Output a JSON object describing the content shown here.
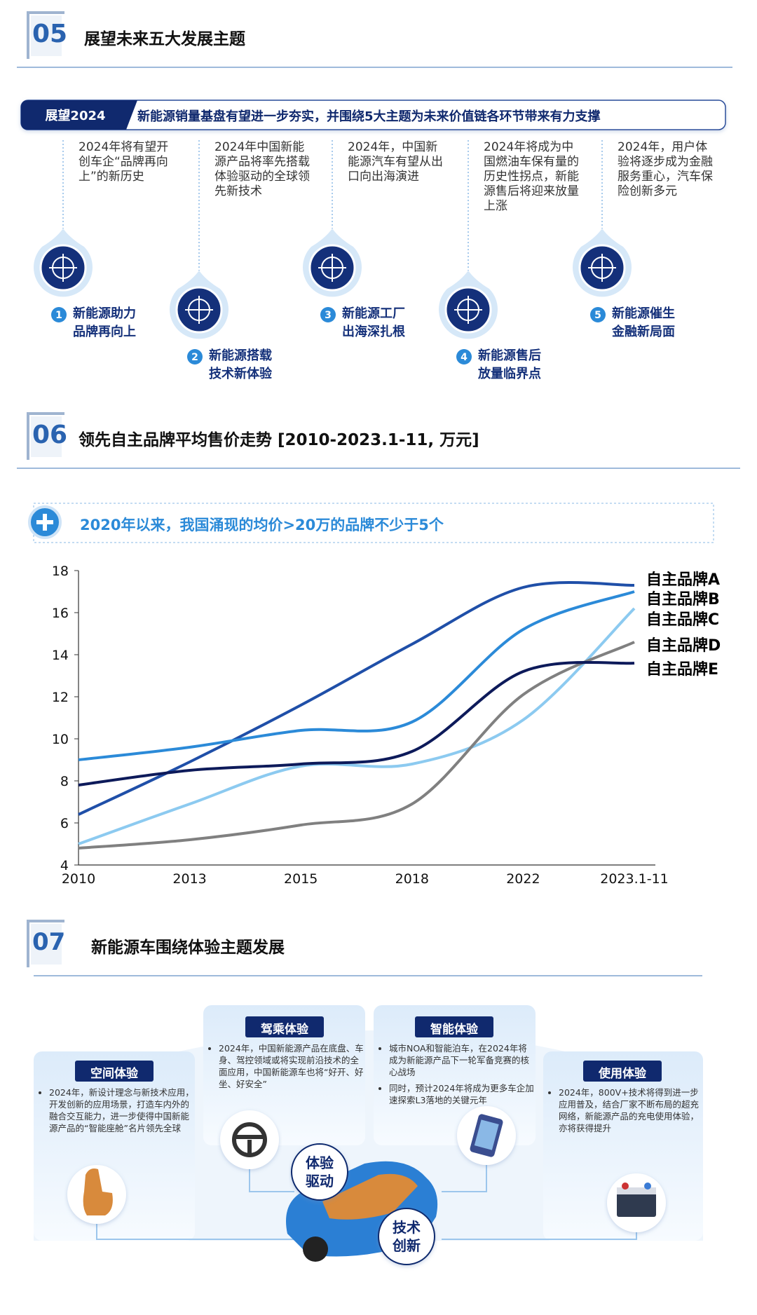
{
  "section05": {
    "number": "05",
    "title": "展望未来五大发展主题",
    "banner_tag": "展望2024",
    "banner_text": "新能源销量基盘有望进一步夯实，并围绕5大主题为未来价值链各环节带来有力支撑",
    "themes": [
      {
        "index": 1,
        "name": "新能源助力品牌再向上",
        "desc": "2024年将有望开创车企“品牌再向上”的新历史"
      },
      {
        "index": 2,
        "name": "新能源搭载技术新体验",
        "desc": "2024年中国新能源产品将率先搭载体验驱动的全球领先新技术"
      },
      {
        "index": 3,
        "name": "新能源工厂出海深扎根",
        "desc": "2024年，中国新能源汽车有望从出口向出海演进"
      },
      {
        "index": 4,
        "name": "新能源售后放量临界点",
        "desc": "2024年将成为中国燃油车保有量的历史性拐点，新能源售后将迎来放量上涨"
      },
      {
        "index": 5,
        "name": "新能源催生金融新局面",
        "desc": "2024年，用户体验将逐步成为金融服务重心，汽车保险创新多元"
      }
    ]
  },
  "chart_data": {
    "type": "line",
    "section_number": "06",
    "title": "领先自主品牌平均售价走势 [2010-2023.1-11, 万元]",
    "annotation": "2020年以来，我国涌现的均价>20万的品牌不少于5个",
    "categories": [
      "2010",
      "2013",
      "2015",
      "2018",
      "2022",
      "2023.1-11"
    ],
    "series": [
      {
        "name": "自主品牌A",
        "color": "#1f4fa8",
        "values": [
          6.4,
          8.9,
          11.6,
          14.5,
          17.2,
          17.3
        ]
      },
      {
        "name": "自主品牌B",
        "color": "#2b8ad8",
        "values": [
          9.0,
          9.6,
          10.4,
          10.8,
          15.2,
          17.0
        ]
      },
      {
        "name": "自主品牌C",
        "color": "#8ccaf0",
        "values": [
          5.0,
          6.9,
          8.7,
          8.8,
          10.9,
          16.2
        ]
      },
      {
        "name": "自主品牌D",
        "color": "#808080",
        "values": [
          4.8,
          5.2,
          5.9,
          6.9,
          12.1,
          14.6
        ]
      },
      {
        "name": "自主品牌E",
        "color": "#0d1a5a",
        "values": [
          7.8,
          8.5,
          8.8,
          9.4,
          13.2,
          13.6
        ]
      }
    ],
    "ylim": [
      4,
      18
    ],
    "yticks": [
      4,
      6,
      8,
      10,
      12,
      14,
      16,
      18
    ],
    "grid": false
  },
  "section07": {
    "number": "07",
    "title": "新能源车围绕体验主题发展",
    "center_labels": [
      "体验驱动",
      "技术创新"
    ],
    "cards": [
      {
        "title": "空间体验",
        "bullets": [
          "2024年，新设计理念与新技术应用，开发创新的应用场景，打造车内外的融合交互能力，进一步使得中国新能源产品的“智能座舱”名片领先全球"
        ]
      },
      {
        "title": "驾乘体验",
        "bullets": [
          "2024年，中国新能源产品在底盘、车身、驾控领域或将实现前沿技术的全面应用，中国新能源车也将“好开、好坐、好安全”"
        ]
      },
      {
        "title": "智能体验",
        "bullets": [
          "城市NOA和智能泊车，在2024年将成为新能源产品下一轮军备竞赛的核心战场",
          "同时，预计2024年将成为更多车企加速探索L3落地的关键元年"
        ]
      },
      {
        "title": "使用体验",
        "bullets": [
          "2024年，800V+技术将得到进一步应用普及，结合厂家不断布局的超充网络，新能源产品的充电使用体验，亦将获得提升"
        ]
      }
    ]
  }
}
